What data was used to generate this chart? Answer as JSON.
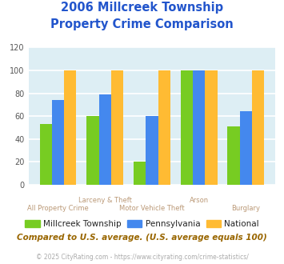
{
  "title_line1": "2006 Millcreek Township",
  "title_line2": "Property Crime Comparison",
  "categories": [
    "All Property Crime",
    "Larceny & Theft",
    "Motor Vehicle Theft",
    "Arson",
    "Burglary"
  ],
  "millcreek": [
    53,
    60,
    20,
    100,
    51
  ],
  "pennsylvania": [
    74,
    79,
    60,
    100,
    64
  ],
  "national": [
    100,
    100,
    100,
    100,
    100
  ],
  "color_millcreek": "#77cc22",
  "color_pennsylvania": "#4488ee",
  "color_national": "#ffbb33",
  "ylim": [
    0,
    120
  ],
  "yticks": [
    0,
    20,
    40,
    60,
    80,
    100,
    120
  ],
  "bg_color": "#ddeef4",
  "grid_color": "#ffffff",
  "title_color": "#2255cc",
  "xlabel_color": "#bb9977",
  "legend_text_color": "#222222",
  "note_text_color": "#996600",
  "footer_color": "#aaaaaa",
  "footer_text": "© 2025 CityRating.com - https://www.cityrating.com/crime-statistics/",
  "note_text": "Compared to U.S. average. (U.S. average equals 100)"
}
